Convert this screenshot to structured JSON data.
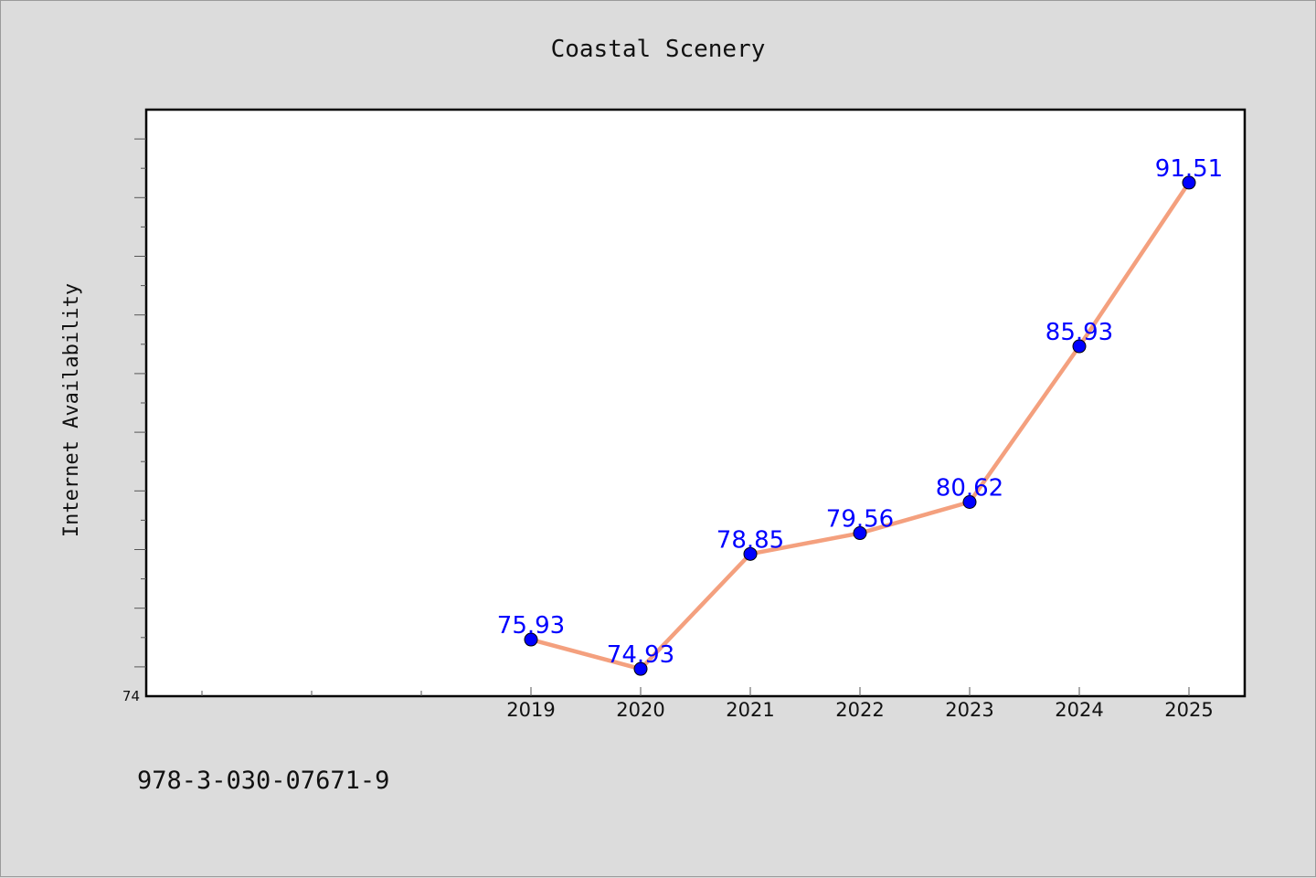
{
  "chart_data": {
    "type": "line",
    "title": "Coastal Scenery",
    "xlabel": "",
    "ylabel": "Internet Availability",
    "categories": [
      "2019",
      "2020",
      "2021",
      "2022",
      "2023",
      "2024",
      "2025"
    ],
    "series": [
      {
        "values": [
          75.93,
          74.93,
          78.85,
          79.56,
          80.62,
          85.93,
          91.51
        ],
        "labels": [
          "75.93",
          "74.93",
          "78.85",
          "79.56",
          "80.62",
          "85.93",
          "91.51"
        ]
      }
    ],
    "ylim": [
      74,
      94
    ],
    "yticks_labeled": [
      "74"
    ],
    "line_color": "#f4a07e",
    "marker_color": "#0000ff",
    "label_color": "#0000ff",
    "grid": false,
    "legend": "none"
  },
  "footer": {
    "isbn": "978-3-030-07671-9"
  }
}
